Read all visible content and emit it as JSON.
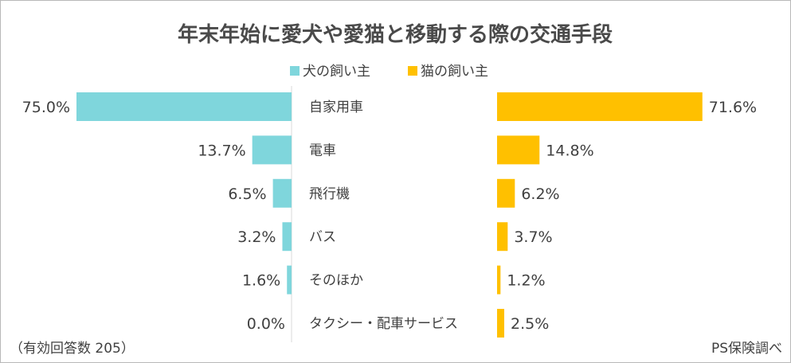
{
  "chart_data": {
    "type": "bar",
    "title": "年末年始に愛犬や愛猫と移動する際の交通手段",
    "categories": [
      "自家用車",
      "電車",
      "飛行機",
      "バス",
      "そのほか",
      "タクシー・配車サービス"
    ],
    "series": [
      {
        "name": "犬の飼い主",
        "color": "#7fd6dc",
        "values": [
          75.0,
          13.7,
          6.5,
          3.2,
          1.6,
          0.0
        ],
        "labels": [
          "75.0%",
          "13.7%",
          "6.5%",
          "3.2%",
          "1.6%",
          "0.0%"
        ]
      },
      {
        "name": "猫の飼い主",
        "color": "#ffc000",
        "values": [
          71.6,
          14.8,
          6.2,
          3.7,
          1.2,
          2.5
        ],
        "labels": [
          "71.6%",
          "14.8%",
          "6.2%",
          "3.7%",
          "1.2%",
          "2.5%"
        ]
      }
    ],
    "legend_position": "top-center",
    "grid": false,
    "xlim": [
      0,
      100
    ]
  },
  "footnote_left": "（有効回答数 205）",
  "footnote_right": "PS保険調べ"
}
